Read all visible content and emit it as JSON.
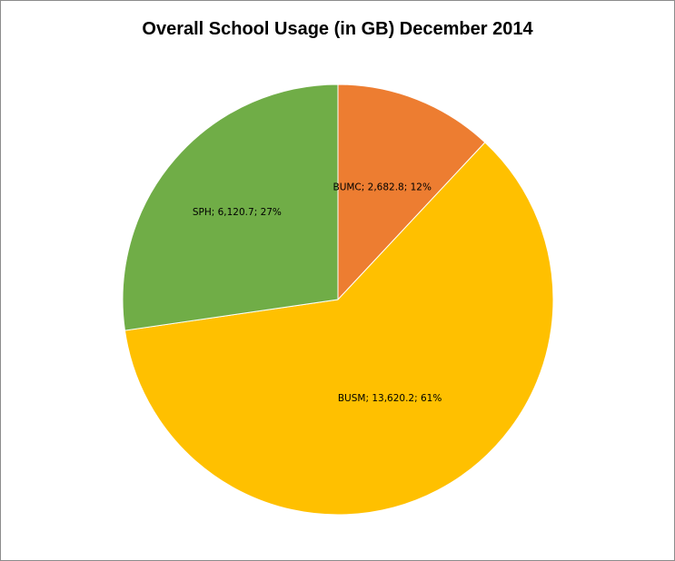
{
  "chart_data": {
    "type": "pie",
    "title": "Overall School Usage (in GB) December 2014",
    "slices": [
      {
        "label": "BUMC",
        "value": 2682.8,
        "value_text": "2,682.8",
        "percent_text": "12%",
        "color": "#ED7D31"
      },
      {
        "label": "BUSM",
        "value": 13620.2,
        "value_text": "13,620.2",
        "percent_text": "61%",
        "color": "#FFC000"
      },
      {
        "label": "SPH",
        "value": 6120.7,
        "value_text": "6,120.7",
        "percent_text": "27%",
        "color": "#70AD47"
      }
    ],
    "start_angle": "12 o'clock",
    "direction": "clockwise",
    "legend": "none"
  }
}
